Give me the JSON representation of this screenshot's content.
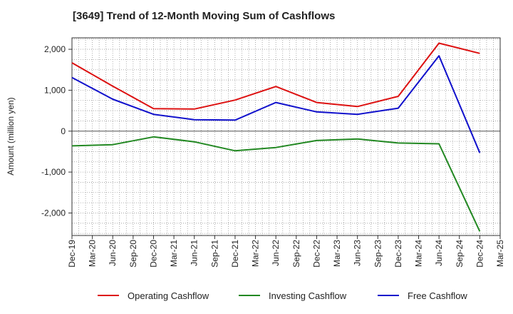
{
  "chart_data": {
    "type": "line",
    "title": "[3649]  Trend of 12-Month Moving Sum of Cashflows",
    "ylabel": "Amount (million yen)",
    "xlabel": "",
    "x_ticks": [
      "Dec-19",
      "Mar-20",
      "Jun-20",
      "Sep-20",
      "Dec-20",
      "Mar-21",
      "Jun-21",
      "Sep-21",
      "Dec-21",
      "Mar-22",
      "Jun-22",
      "Sep-22",
      "Dec-22",
      "Mar-23",
      "Jun-23",
      "Sep-23",
      "Dec-23",
      "Mar-24",
      "Jun-24",
      "Sep-24",
      "Dec-24",
      "Mar-25"
    ],
    "y_ticks": [
      2000,
      1000,
      0,
      -1000,
      -2000
    ],
    "y_tick_labels": [
      "2,000",
      "1,000",
      "0",
      "-1,000",
      "-2,000"
    ],
    "ylim": [
      -2550,
      2280
    ],
    "grid": true,
    "legend_position": "bottom",
    "series": [
      {
        "name": "Operating Cashflow",
        "color": "#dd1111",
        "points": [
          {
            "x": "Dec-19",
            "y": 1670
          },
          {
            "x": "Jun-20",
            "y": 1100
          },
          {
            "x": "Dec-20",
            "y": 550
          },
          {
            "x": "Jun-21",
            "y": 540
          },
          {
            "x": "Dec-21",
            "y": 760
          },
          {
            "x": "Jun-22",
            "y": 1090
          },
          {
            "x": "Dec-22",
            "y": 700
          },
          {
            "x": "Jun-23",
            "y": 600
          },
          {
            "x": "Dec-23",
            "y": 850
          },
          {
            "x": "Jun-24",
            "y": 2150
          },
          {
            "x": "Dec-24",
            "y": 1900
          }
        ]
      },
      {
        "name": "Investing Cashflow",
        "color": "#228822",
        "points": [
          {
            "x": "Dec-19",
            "y": -360
          },
          {
            "x": "Jun-20",
            "y": -330
          },
          {
            "x": "Dec-20",
            "y": -140
          },
          {
            "x": "Jun-21",
            "y": -260
          },
          {
            "x": "Dec-21",
            "y": -480
          },
          {
            "x": "Jun-22",
            "y": -400
          },
          {
            "x": "Dec-22",
            "y": -230
          },
          {
            "x": "Jun-23",
            "y": -190
          },
          {
            "x": "Dec-23",
            "y": -290
          },
          {
            "x": "Jun-24",
            "y": -310
          },
          {
            "x": "Dec-24",
            "y": -2450
          }
        ]
      },
      {
        "name": "Free Cashflow",
        "color": "#1111cc",
        "points": [
          {
            "x": "Dec-19",
            "y": 1310
          },
          {
            "x": "Jun-20",
            "y": 780
          },
          {
            "x": "Dec-20",
            "y": 410
          },
          {
            "x": "Jun-21",
            "y": 280
          },
          {
            "x": "Dec-21",
            "y": 270
          },
          {
            "x": "Jun-22",
            "y": 700
          },
          {
            "x": "Dec-22",
            "y": 470
          },
          {
            "x": "Jun-23",
            "y": 410
          },
          {
            "x": "Dec-23",
            "y": 560
          },
          {
            "x": "Jun-24",
            "y": 1840
          },
          {
            "x": "Dec-24",
            "y": -530
          }
        ]
      }
    ]
  }
}
